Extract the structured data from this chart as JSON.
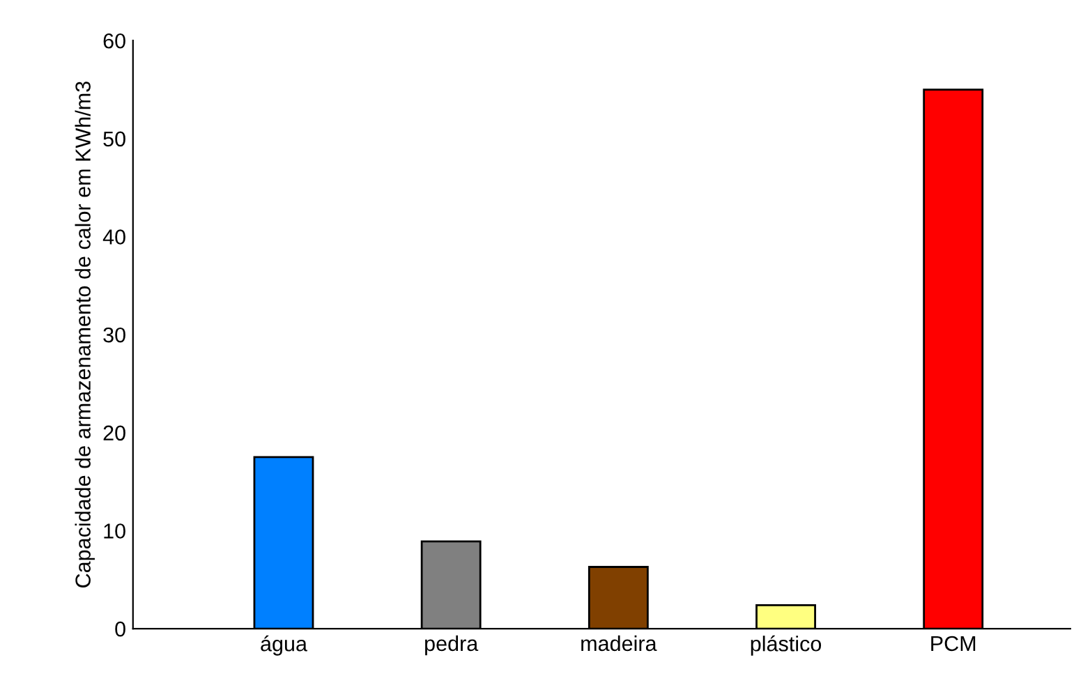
{
  "chart_data": {
    "type": "bar",
    "ylabel": "Capacidade de armazenamento de calor em KWh/m3",
    "categories": [
      "água",
      "pedra",
      "madeira",
      "plástico",
      "PCM"
    ],
    "values": [
      17.5,
      8.9,
      6.3,
      2.4,
      55
    ],
    "colors": [
      "#0080ff",
      "#808080",
      "#804000",
      "#ffff80",
      "#ff0000"
    ],
    "ylim": [
      0,
      60
    ],
    "yticks": [
      0,
      10,
      20,
      30,
      40,
      50,
      60
    ],
    "grid": false,
    "legend": false
  }
}
